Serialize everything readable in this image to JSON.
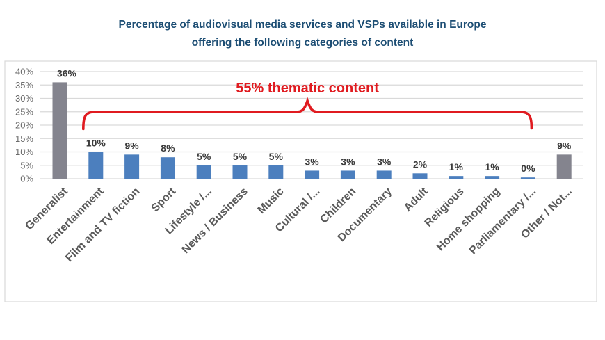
{
  "title": {
    "line1": "Percentage of audiovisual media services and VSPs available in Europe",
    "line2": "offering the following categories of content"
  },
  "annotation": {
    "text": "55% thematic content"
  },
  "colors": {
    "title": "#1D4E74",
    "bar_blue": "#4C7FBE",
    "bar_gray": "#84848E",
    "gridline": "#D9D9D9",
    "frame": "#D9D9D9",
    "axis_tick_text": "#6B6B6B",
    "category_text": "#5A5A5A",
    "value_label_text": "#3B3B3B",
    "annotation_red": "#E01B20"
  },
  "chart_data": {
    "type": "bar",
    "title": "Percentage of audiovisual media services and VSPs available in Europe offering the following categories of content",
    "categories": [
      "Generalist",
      "Entertainment",
      "Film and TV fiction",
      "Sport",
      "Lifestyle /...",
      "News / Business",
      "Music",
      "Cultural /...",
      "Children",
      "Documentary",
      "Adult",
      "Religious",
      "Home shopping",
      "Parliamentary /...",
      "Other / Not..."
    ],
    "values": [
      36,
      10,
      9,
      8,
      5,
      5,
      5,
      3,
      3,
      3,
      2,
      1,
      1,
      0,
      9
    ],
    "value_labels": [
      "36%",
      "10%",
      "9%",
      "8%",
      "5%",
      "5%",
      "5%",
      "3%",
      "3%",
      "3%",
      "2%",
      "1%",
      "1%",
      "0%",
      "9%"
    ],
    "bar_colors": [
      "gray",
      "blue",
      "blue",
      "blue",
      "blue",
      "blue",
      "blue",
      "blue",
      "blue",
      "blue",
      "blue",
      "blue",
      "blue",
      "blue",
      "gray"
    ],
    "xlabel": "",
    "ylabel": "",
    "ylim": [
      0,
      40
    ],
    "y_tick_step": 5,
    "y_tick_labels": [
      "0%",
      "5%",
      "10%",
      "15%",
      "20%",
      "25%",
      "30%",
      "35%",
      "40%"
    ],
    "grid": true,
    "legend": false,
    "annotation": {
      "text": "55% thematic content",
      "spans_categories": [
        "Entertainment",
        "Parliamentary /..."
      ],
      "note": "red curly brace over the 13 thematic-content bars"
    }
  }
}
